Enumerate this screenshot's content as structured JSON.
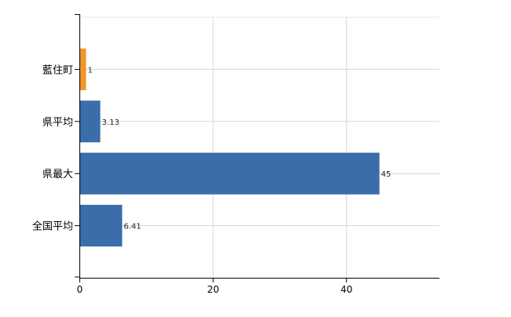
{
  "chart_data": {
    "type": "bar",
    "orientation": "horizontal",
    "categories": [
      "藍住町",
      "県平均",
      "県最大",
      "全国平均"
    ],
    "values": [
      1,
      3.13,
      45,
      6.41
    ],
    "data_labels": [
      "1",
      "3.13",
      "45",
      "6.41"
    ],
    "bar_colors": [
      "#F0962E",
      "#3A6DAA",
      "#3A6DAA",
      "#3A6DAA"
    ],
    "xlim": [
      0,
      54
    ],
    "xticks": [
      0,
      20,
      40
    ],
    "xtick_labels": [
      "0",
      "20",
      "40"
    ],
    "grid": true,
    "title": "",
    "xlabel": "",
    "ylabel": ""
  }
}
